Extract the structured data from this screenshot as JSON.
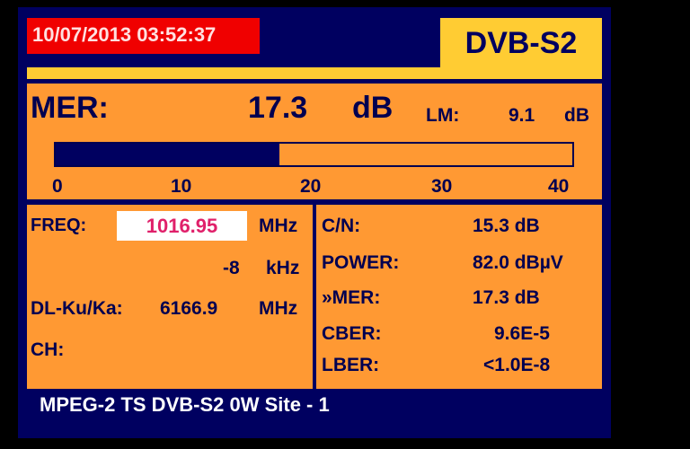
{
  "datetime": "10/07/2013 03:52:37",
  "mode": "DVB-S2",
  "mer": {
    "label": "MER:",
    "value": "17.3",
    "unit": "dB",
    "lm_label": "LM:",
    "lm_value": "9.1",
    "lm_unit": "dB",
    "bar_value": 17.3,
    "bar_max": 40,
    "ticks": [
      "0",
      "10",
      "20",
      "30",
      "40"
    ]
  },
  "left": {
    "freq_label": "FREQ:",
    "freq_value": "1016.95",
    "freq_unit": "MHz",
    "offset_value": "-8",
    "offset_unit": "kHz",
    "dl_label": "DL-Ku/Ka:",
    "dl_value": "6166.9",
    "dl_unit": "MHz",
    "ch_label": "CH:"
  },
  "right": [
    {
      "label": "C/N:",
      "value": "15.3 dB"
    },
    {
      "label": "POWER:",
      "value": "82.0 dBµV"
    },
    {
      "label": "»MER:",
      "value": "17.3 dB"
    },
    {
      "label": "CBER:",
      "value": "9.6E-5"
    },
    {
      "label": "LBER:",
      "value": "<1.0E-8"
    }
  ],
  "footer": "MPEG-2 TS DVB-S2 0W Site - 1",
  "colors": {
    "panel": "#ff9933",
    "background": "#000060",
    "accent": "#ffcc33",
    "date": "#f00000",
    "freq_text": "#e0206a"
  }
}
